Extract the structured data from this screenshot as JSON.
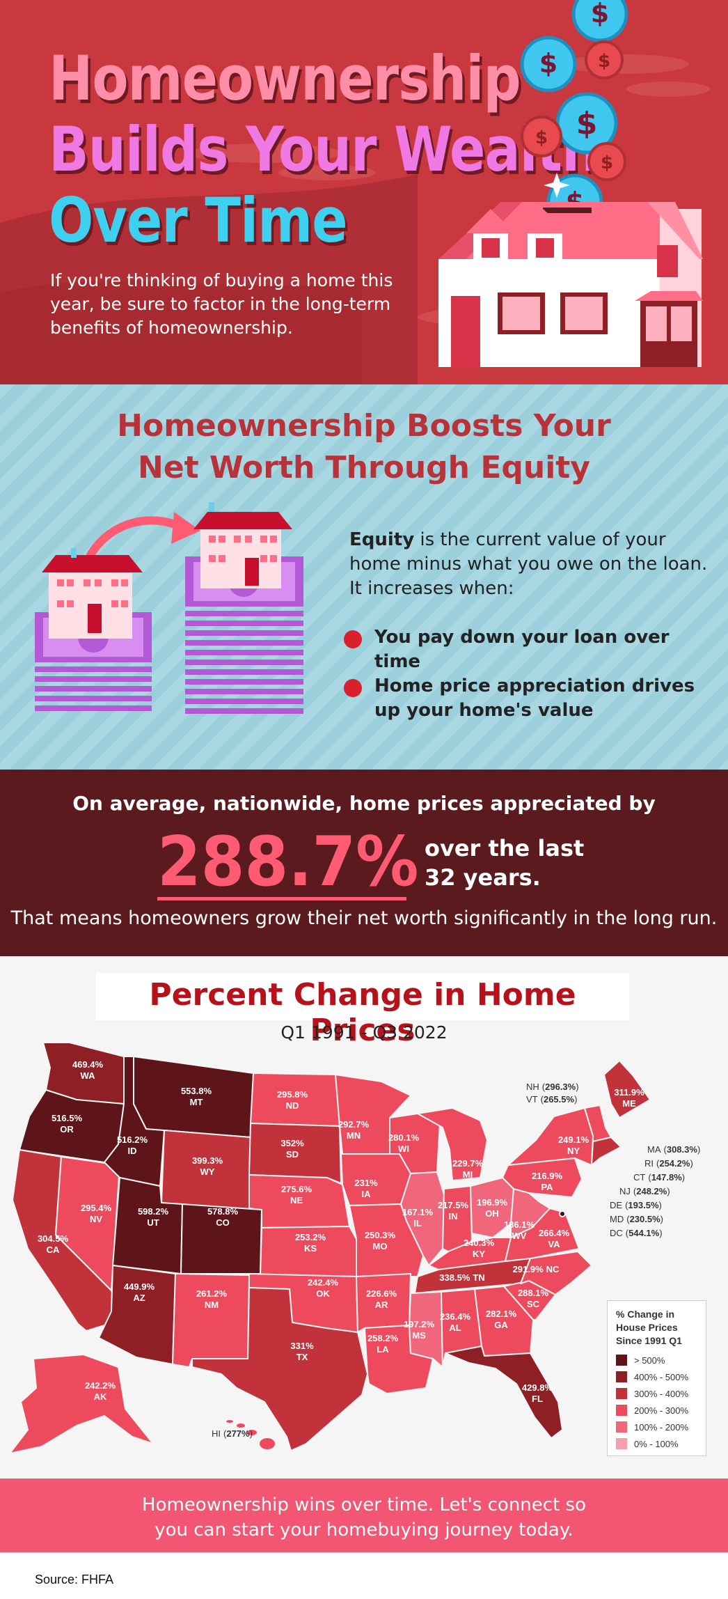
{
  "hero": {
    "title_line1": "Homeownership",
    "title_line2": "Builds Your Wealth",
    "title_line3": "Over Time",
    "subtitle": "If you're thinking of buying a home this year, be sure to factor in the long-term benefits of homeownership.",
    "coin_symbol": "$",
    "icons": [
      "dollar-coin-icon",
      "house-icon",
      "sparkle-icon",
      "cloud-icon"
    ]
  },
  "equity": {
    "title_line1": "Homeownership Boosts Your",
    "title_line2": "Net Worth Through Equity",
    "definition_term": "Equity",
    "definition_rest": " is the current value of your home minus what you owe on the loan. It increases when:",
    "bullets": [
      "You pay down your loan over time",
      "Home price appreciation drives up your home's value"
    ],
    "icons": [
      "house-on-money-stack-icon",
      "arrow-icon"
    ]
  },
  "stat": {
    "lead": "On average, nationwide, home prices appreciated by",
    "value": "288.7%",
    "tail_line1": "over the last",
    "tail_line2": "32 years.",
    "footnote": "That means homeowners grow their net worth significantly in the long run."
  },
  "map": {
    "title": "Percent Change in Home Prices",
    "subtitle": "Q1 1991 - Q3 2022",
    "legend": {
      "title_line1": "% Change in",
      "title_line2": "House Prices",
      "title_line3": "Since 1991 Q1",
      "bins": [
        {
          "label": "> 500%",
          "color": "#5e1519"
        },
        {
          "label": "400% - 500%",
          "color": "#8e1f24"
        },
        {
          "label": "300% - 400%",
          "color": "#c1323b"
        },
        {
          "label": "200% - 300%",
          "color": "#ed4b5d"
        },
        {
          "label": "100% - 200%",
          "color": "#f0667a"
        },
        {
          "label": "0% - 100%",
          "color": "#f6a0ad"
        }
      ]
    },
    "states": {
      "WA": {
        "value": "469.4%",
        "abbr": "WA"
      },
      "OR": {
        "value": "516.5%",
        "abbr": "OR"
      },
      "CA": {
        "value": "304.5%",
        "abbr": "CA"
      },
      "NV": {
        "value": "295.4%",
        "abbr": "NV"
      },
      "ID": {
        "value": "516.2%",
        "abbr": "ID"
      },
      "MT": {
        "value": "553.8%",
        "abbr": "MT"
      },
      "WY": {
        "value": "399.3%",
        "abbr": "WY"
      },
      "UT": {
        "value": "598.2%",
        "abbr": "UT"
      },
      "CO": {
        "value": "578.8%",
        "abbr": "CO"
      },
      "AZ": {
        "value": "449.9%",
        "abbr": "AZ"
      },
      "NM": {
        "value": "261.2%",
        "abbr": "NM"
      },
      "ND": {
        "value": "295.8%",
        "abbr": "ND"
      },
      "SD": {
        "value": "352%",
        "abbr": "SD"
      },
      "NE": {
        "value": "275.6%",
        "abbr": "NE"
      },
      "KS": {
        "value": "253.2%",
        "abbr": "KS"
      },
      "OK": {
        "value": "242.4%",
        "abbr": "OK"
      },
      "TX": {
        "value": "331%",
        "abbr": "TX"
      },
      "MN": {
        "value": "292.7%",
        "abbr": "MN"
      },
      "IA": {
        "value": "231%",
        "abbr": "IA"
      },
      "MO": {
        "value": "250.3%",
        "abbr": "MO"
      },
      "AR": {
        "value": "226.6%",
        "abbr": "AR"
      },
      "LA": {
        "value": "258.2%",
        "abbr": "LA"
      },
      "WI": {
        "value": "280.1%",
        "abbr": "WI"
      },
      "IL": {
        "value": "167.1%",
        "abbr": "IL"
      },
      "MI": {
        "value": "229.7%",
        "abbr": "MI"
      },
      "IN": {
        "value": "217.5%",
        "abbr": "IN"
      },
      "OH": {
        "value": "196.9%",
        "abbr": "OH"
      },
      "KY": {
        "value": "240.3%",
        "abbr": "KY"
      },
      "TN": {
        "value": "338.5%",
        "abbr": "TN"
      },
      "MS": {
        "value": "197.2%",
        "abbr": "MS"
      },
      "AL": {
        "value": "236.4%",
        "abbr": "AL"
      },
      "GA": {
        "value": "282.1%",
        "abbr": "GA"
      },
      "FL": {
        "value": "429.8%",
        "abbr": "FL"
      },
      "SC": {
        "value": "288.1%",
        "abbr": "SC"
      },
      "NC": {
        "value": "291.9%",
        "abbr": "NC"
      },
      "VA": {
        "value": "266.4%",
        "abbr": "VA"
      },
      "WV": {
        "value": "186.1%",
        "abbr": "WV"
      },
      "PA": {
        "value": "216.9%",
        "abbr": "PA"
      },
      "NY": {
        "value": "249.1%",
        "abbr": "NY"
      },
      "ME": {
        "value": "311.9%",
        "abbr": "ME"
      },
      "AK": {
        "value": "242.2%",
        "abbr": "AK"
      },
      "HI": {
        "value": "277%",
        "abbr": "HI"
      }
    },
    "callouts": [
      {
        "abbr": "NH",
        "value": "296.3%"
      },
      {
        "abbr": "VT",
        "value": "265.5%"
      },
      {
        "abbr": "MA",
        "value": "308.3%"
      },
      {
        "abbr": "RI",
        "value": "254.2%"
      },
      {
        "abbr": "CT",
        "value": "147.8%"
      },
      {
        "abbr": "NJ",
        "value": "248.2%"
      },
      {
        "abbr": "DE",
        "value": "193.5%"
      },
      {
        "abbr": "MD",
        "value": "230.5%"
      },
      {
        "abbr": "DC",
        "value": "544.1%"
      }
    ]
  },
  "cta": {
    "line1": "Homeownership wins over time. Let's connect so",
    "line2": "you can start your homebuying journey today."
  },
  "source": "Source: FHFA"
}
